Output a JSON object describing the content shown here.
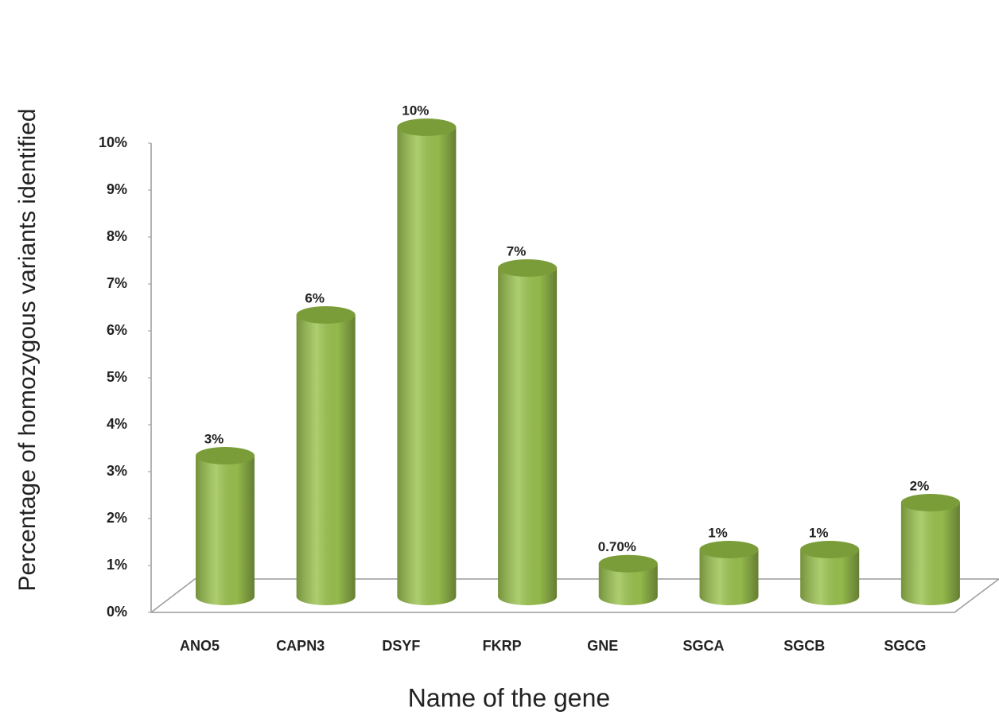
{
  "chart_data": {
    "type": "bar",
    "x_label": "Name of the gene",
    "y_label": "Percentage of homozygous variants identified",
    "categories": [
      "ANO5",
      "CAPN3",
      "DSYF",
      "FKRP",
      "GNE",
      "SGCA",
      "SGCB",
      "SGCG"
    ],
    "values": [
      3,
      6,
      10,
      7,
      0.7,
      1,
      1,
      2
    ],
    "value_labels": [
      "3%",
      "6%",
      "10%",
      "7%",
      "0.70%",
      "1%",
      "1%",
      "2%"
    ],
    "color": "#9bc24f",
    "ylim": [
      0,
      10
    ],
    "yticks": [
      {
        "value": 0,
        "label": "0%"
      },
      {
        "value": 1,
        "label": "1%"
      },
      {
        "value": 2,
        "label": "2%"
      },
      {
        "value": 3,
        "label": "3%"
      },
      {
        "value": 4,
        "label": "4%"
      },
      {
        "value": 5,
        "label": "5%"
      },
      {
        "value": 6,
        "label": "6%"
      },
      {
        "value": 7,
        "label": "7%"
      },
      {
        "value": 8,
        "label": "8%"
      },
      {
        "value": 9,
        "label": "9%"
      },
      {
        "value": 10,
        "label": "10%"
      }
    ]
  }
}
